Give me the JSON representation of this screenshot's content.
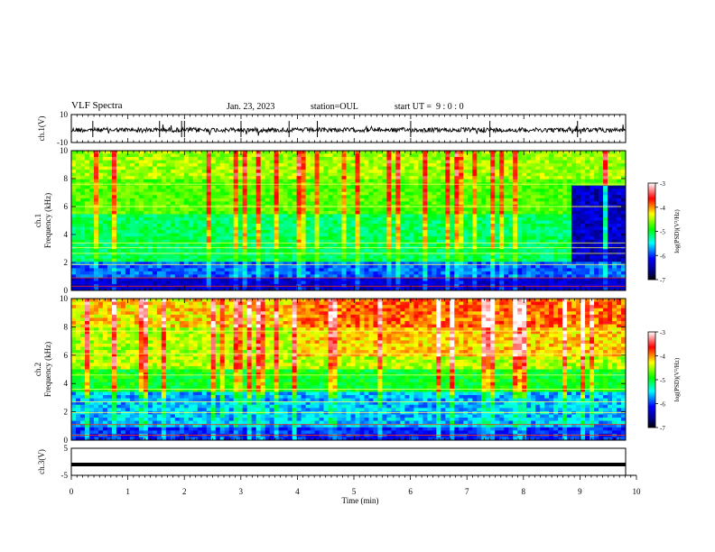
{
  "header": {
    "title": "VLF Spectra",
    "date": "Jan. 23, 2023",
    "station": "station=OUL",
    "start": "start UT =  9 : 0 : 0"
  },
  "chart_data": [
    {
      "type": "line",
      "id": "ch1_waveform",
      "ylabel": "ch.1(V)",
      "yticks": [
        "10",
        "-10"
      ],
      "ylim": [
        -10,
        10
      ],
      "xlim": [
        0,
        10
      ],
      "description_level": -1
    },
    {
      "type": "heatmap",
      "id": "ch1_spectrogram",
      "ylabel_line1": "ch.1",
      "ylabel_line2": "Frequency (kHz)",
      "yticks": [
        "0",
        "2",
        "4",
        "6",
        "8",
        "10"
      ],
      "ylim": [
        0,
        10
      ],
      "xlim": [
        0,
        9.8
      ],
      "colorbar": {
        "label": "log(PSD)(V²/Hz)",
        "ticks": [
          "-3",
          "-4",
          "-5",
          "-6",
          "-7"
        ],
        "range": [
          -7,
          -3
        ]
      },
      "quiet_period_start_min": 8.85
    },
    {
      "type": "heatmap",
      "id": "ch2_spectrogram",
      "ylabel_line1": "ch.2",
      "ylabel_line2": "Frequency (kHz)",
      "yticks": [
        "0",
        "2",
        "4",
        "6",
        "8",
        "10"
      ],
      "ylim": [
        0,
        10
      ],
      "xlim": [
        0,
        9.8
      ],
      "colorbar": {
        "label": "log(PSD)(V²/Hz)",
        "ticks": [
          "-3",
          "-4",
          "-5",
          "-6",
          "-7"
        ],
        "range": [
          -7,
          -3
        ]
      }
    },
    {
      "type": "line",
      "id": "ch3_waveform",
      "ylabel": "ch.3(V)",
      "yticks": [
        "5",
        "-5"
      ],
      "ylim": [
        -5,
        5
      ],
      "xlim": [
        0,
        10
      ],
      "level": -1,
      "xlabel": "Time  (min)",
      "xticks": [
        "0",
        "1",
        "2",
        "3",
        "4",
        "5",
        "6",
        "7",
        "8",
        "9",
        "10"
      ]
    }
  ]
}
